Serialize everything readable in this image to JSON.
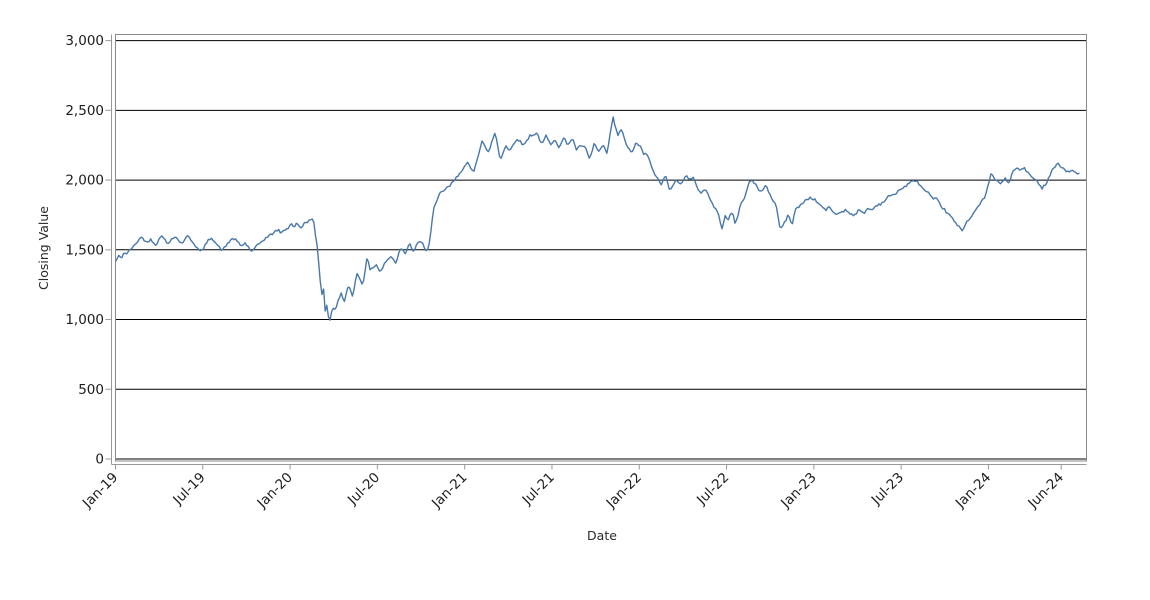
{
  "chart_data": {
    "type": "line",
    "title": "",
    "xlabel": "Date",
    "ylabel": "Closing Value",
    "legend": "none",
    "grid": "horizontal-black-gridlines",
    "ylim": [
      0,
      3000
    ],
    "x_domain_months": [
      0,
      66.74
    ],
    "x_unit": "months since Jan-2019 (daily series)",
    "y_ticks": [
      {
        "value": 0,
        "label": "0"
      },
      {
        "value": 500,
        "label": "500"
      },
      {
        "value": 1000,
        "label": "1,000"
      },
      {
        "value": 1500,
        "label": "1,500"
      },
      {
        "value": 2000,
        "label": "2,000"
      },
      {
        "value": 2500,
        "label": "2,500"
      },
      {
        "value": 3000,
        "label": "3,000"
      }
    ],
    "x_ticks": [
      {
        "m": 0,
        "label": "Jan-19"
      },
      {
        "m": 6,
        "label": "Jul-19"
      },
      {
        "m": 12,
        "label": "Jan-20"
      },
      {
        "m": 18,
        "label": "Jul-20"
      },
      {
        "m": 24,
        "label": "Jan-21"
      },
      {
        "m": 30,
        "label": "Jul-21"
      },
      {
        "m": 36,
        "label": "Jan-22"
      },
      {
        "m": 42,
        "label": "Jul-22"
      },
      {
        "m": 48,
        "label": "Jan-23"
      },
      {
        "m": 54,
        "label": "Jul-23"
      },
      {
        "m": 60,
        "label": "Jan-24"
      },
      {
        "m": 65,
        "label": "Jun-24"
      }
    ],
    "series": [
      {
        "name": "Closing Value",
        "color": "#4878ab",
        "sampling": "values read off chart (approx weekly); [months since Jan-2019, closing value]",
        "points": [
          [
            0,
            1415
          ],
          [
            0.2,
            1455
          ],
          [
            0.4,
            1440
          ],
          [
            0.6,
            1485
          ],
          [
            0.8,
            1465
          ],
          [
            1,
            1505
          ],
          [
            1.2,
            1515
          ],
          [
            1.4,
            1545
          ],
          [
            1.6,
            1575
          ],
          [
            1.8,
            1590
          ],
          [
            2,
            1570
          ],
          [
            2.2,
            1550
          ],
          [
            2.4,
            1580
          ],
          [
            2.6,
            1555
          ],
          [
            2.8,
            1535
          ],
          [
            3,
            1575
          ],
          [
            3.2,
            1610
          ],
          [
            3.4,
            1570
          ],
          [
            3.6,
            1535
          ],
          [
            3.85,
            1580
          ],
          [
            4.1,
            1600
          ],
          [
            4.3,
            1570
          ],
          [
            4.55,
            1545
          ],
          [
            4.8,
            1580
          ],
          [
            5,
            1600
          ],
          [
            5.25,
            1565
          ],
          [
            5.5,
            1530
          ],
          [
            5.7,
            1500
          ],
          [
            5.9,
            1485
          ],
          [
            6.15,
            1530
          ],
          [
            6.4,
            1570
          ],
          [
            6.6,
            1590
          ],
          [
            6.85,
            1555
          ],
          [
            7.1,
            1520
          ],
          [
            7.35,
            1495
          ],
          [
            7.6,
            1530
          ],
          [
            7.9,
            1570
          ],
          [
            8.15,
            1580
          ],
          [
            8.4,
            1555
          ],
          [
            8.65,
            1525
          ],
          [
            8.9,
            1550
          ],
          [
            9.2,
            1510
          ],
          [
            9.4,
            1485
          ],
          [
            9.65,
            1520
          ],
          [
            9.9,
            1545
          ],
          [
            10.15,
            1570
          ],
          [
            10.4,
            1590
          ],
          [
            10.65,
            1605
          ],
          [
            10.9,
            1625
          ],
          [
            11.15,
            1645
          ],
          [
            11.4,
            1620
          ],
          [
            11.65,
            1645
          ],
          [
            11.9,
            1660
          ],
          [
            12.1,
            1690
          ],
          [
            12.3,
            1660
          ],
          [
            12.5,
            1695
          ],
          [
            12.7,
            1650
          ],
          [
            12.9,
            1680
          ],
          [
            13.1,
            1700
          ],
          [
            13.35,
            1712
          ],
          [
            13.6,
            1715
          ],
          [
            13.9,
            1500
          ],
          [
            14.05,
            1300
          ],
          [
            14.2,
            1180
          ],
          [
            14.3,
            1215
          ],
          [
            14.4,
            1050
          ],
          [
            14.5,
            1120
          ],
          [
            14.7,
            975
          ],
          [
            14.9,
            1095
          ],
          [
            15.1,
            1060
          ],
          [
            15.5,
            1200
          ],
          [
            15.7,
            1120
          ],
          [
            16,
            1250
          ],
          [
            16.3,
            1165
          ],
          [
            16.6,
            1335
          ],
          [
            17,
            1240
          ],
          [
            17.3,
            1460
          ],
          [
            17.5,
            1355
          ],
          [
            17.9,
            1395
          ],
          [
            18.2,
            1345
          ],
          [
            18.55,
            1415
          ],
          [
            18.9,
            1450
          ],
          [
            19.25,
            1405
          ],
          [
            19.6,
            1510
          ],
          [
            19.9,
            1470
          ],
          [
            20.2,
            1545
          ],
          [
            20.5,
            1485
          ],
          [
            20.8,
            1555
          ],
          [
            21.1,
            1545
          ],
          [
            21.4,
            1490
          ],
          [
            21.6,
            1560
          ],
          [
            21.85,
            1785
          ],
          [
            22.3,
            1905
          ],
          [
            23,
            1960
          ],
          [
            23.45,
            2020
          ],
          [
            23.85,
            2080
          ],
          [
            24.2,
            2120
          ],
          [
            24.6,
            2055
          ],
          [
            25.2,
            2285
          ],
          [
            25.6,
            2190
          ],
          [
            26.1,
            2345
          ],
          [
            26.45,
            2140
          ],
          [
            26.8,
            2250
          ],
          [
            27.1,
            2210
          ],
          [
            27.6,
            2300
          ],
          [
            28.05,
            2250
          ],
          [
            28.5,
            2320
          ],
          [
            29,
            2335
          ],
          [
            29.3,
            2250
          ],
          [
            29.6,
            2320
          ],
          [
            29.9,
            2250
          ],
          [
            30.2,
            2300
          ],
          [
            30.5,
            2230
          ],
          [
            30.8,
            2300
          ],
          [
            31.1,
            2255
          ],
          [
            31.4,
            2300
          ],
          [
            31.7,
            2215
          ],
          [
            32,
            2250
          ],
          [
            32.3,
            2230
          ],
          [
            32.6,
            2145
          ],
          [
            32.9,
            2265
          ],
          [
            33.2,
            2200
          ],
          [
            33.5,
            2250
          ],
          [
            33.8,
            2180
          ],
          [
            33.9,
            2270
          ],
          [
            34.2,
            2450
          ],
          [
            34.4,
            2360
          ],
          [
            34.55,
            2320
          ],
          [
            34.8,
            2370
          ],
          [
            35.1,
            2250
          ],
          [
            35.45,
            2195
          ],
          [
            35.8,
            2265
          ],
          [
            36.1,
            2240
          ],
          [
            36.3,
            2180
          ],
          [
            36.5,
            2195
          ],
          [
            36.9,
            2080
          ],
          [
            37.2,
            2020
          ],
          [
            37.5,
            1965
          ],
          [
            37.8,
            2035
          ],
          [
            38.1,
            1930
          ],
          [
            38.5,
            2000
          ],
          [
            38.8,
            1965
          ],
          [
            39.2,
            2035
          ],
          [
            39.5,
            2000
          ],
          [
            39.7,
            2015
          ],
          [
            40.2,
            1905
          ],
          [
            40.55,
            1940
          ],
          [
            40.9,
            1855
          ],
          [
            41.2,
            1800
          ],
          [
            41.4,
            1765
          ],
          [
            41.7,
            1655
          ],
          [
            41.9,
            1750
          ],
          [
            42.1,
            1715
          ],
          [
            42.4,
            1770
          ],
          [
            42.6,
            1680
          ],
          [
            42.95,
            1820
          ],
          [
            43.3,
            1890
          ],
          [
            43.6,
            2010
          ],
          [
            44,
            1965
          ],
          [
            44.3,
            1910
          ],
          [
            44.7,
            1965
          ],
          [
            45,
            1890
          ],
          [
            45.4,
            1820
          ],
          [
            45.7,
            1640
          ],
          [
            46,
            1700
          ],
          [
            46.25,
            1750
          ],
          [
            46.5,
            1680
          ],
          [
            46.7,
            1785
          ],
          [
            47.1,
            1820
          ],
          [
            47.4,
            1855
          ],
          [
            47.8,
            1875
          ],
          [
            48.1,
            1855
          ],
          [
            48.45,
            1820
          ],
          [
            48.8,
            1785
          ],
          [
            49.1,
            1805
          ],
          [
            49.5,
            1750
          ],
          [
            49.8,
            1770
          ],
          [
            50.2,
            1785
          ],
          [
            50.5,
            1760
          ],
          [
            50.8,
            1750
          ],
          [
            51.1,
            1785
          ],
          [
            51.4,
            1760
          ],
          [
            51.7,
            1795
          ],
          [
            52,
            1785
          ],
          [
            52.3,
            1820
          ],
          [
            52.6,
            1830
          ],
          [
            52.9,
            1855
          ],
          [
            53.2,
            1890
          ],
          [
            53.5,
            1890
          ],
          [
            53.8,
            1925
          ],
          [
            54.1,
            1940
          ],
          [
            54.4,
            1965
          ],
          [
            54.7,
            1985
          ],
          [
            55,
            2000
          ],
          [
            55.3,
            1965
          ],
          [
            55.6,
            1925
          ],
          [
            55.9,
            1905
          ],
          [
            56.2,
            1855
          ],
          [
            56.4,
            1870
          ],
          [
            56.7,
            1820
          ],
          [
            57,
            1785
          ],
          [
            57.3,
            1750
          ],
          [
            57.6,
            1715
          ],
          [
            57.8,
            1680
          ],
          [
            58.2,
            1640
          ],
          [
            58.4,
            1680
          ],
          [
            58.6,
            1715
          ],
          [
            58.9,
            1750
          ],
          [
            59.1,
            1785
          ],
          [
            59.3,
            1805
          ],
          [
            59.45,
            1833
          ],
          [
            59.8,
            1890
          ],
          [
            60,
            1965
          ],
          [
            60.15,
            2045
          ],
          [
            60.5,
            2000
          ],
          [
            60.8,
            1975
          ],
          [
            61.2,
            2010
          ],
          [
            61.4,
            1975
          ],
          [
            61.65,
            2055
          ],
          [
            61.9,
            2085
          ],
          [
            62.2,
            2070
          ],
          [
            62.4,
            2090
          ],
          [
            62.7,
            2055
          ],
          [
            62.9,
            2030
          ],
          [
            63.2,
            2000
          ],
          [
            63.6,
            1965
          ],
          [
            63.7,
            1940
          ],
          [
            64,
            1985
          ],
          [
            64.3,
            2055
          ],
          [
            64.6,
            2105
          ],
          [
            64.75,
            2120
          ],
          [
            65.1,
            2085
          ],
          [
            65.3,
            2070
          ],
          [
            65.6,
            2055
          ],
          [
            65.8,
            2070
          ],
          [
            66.1,
            2045
          ],
          [
            66.3,
            2050
          ]
        ]
      }
    ],
    "texture": {
      "noise_amplitude": 9,
      "seed": 42,
      "step_months": 0.11
    },
    "colors": {
      "gridline": "#000000",
      "frame": "#8a8a8a",
      "axis": "#999999",
      "tick_text": "#1c1c1c",
      "background": "#ffffff"
    }
  }
}
